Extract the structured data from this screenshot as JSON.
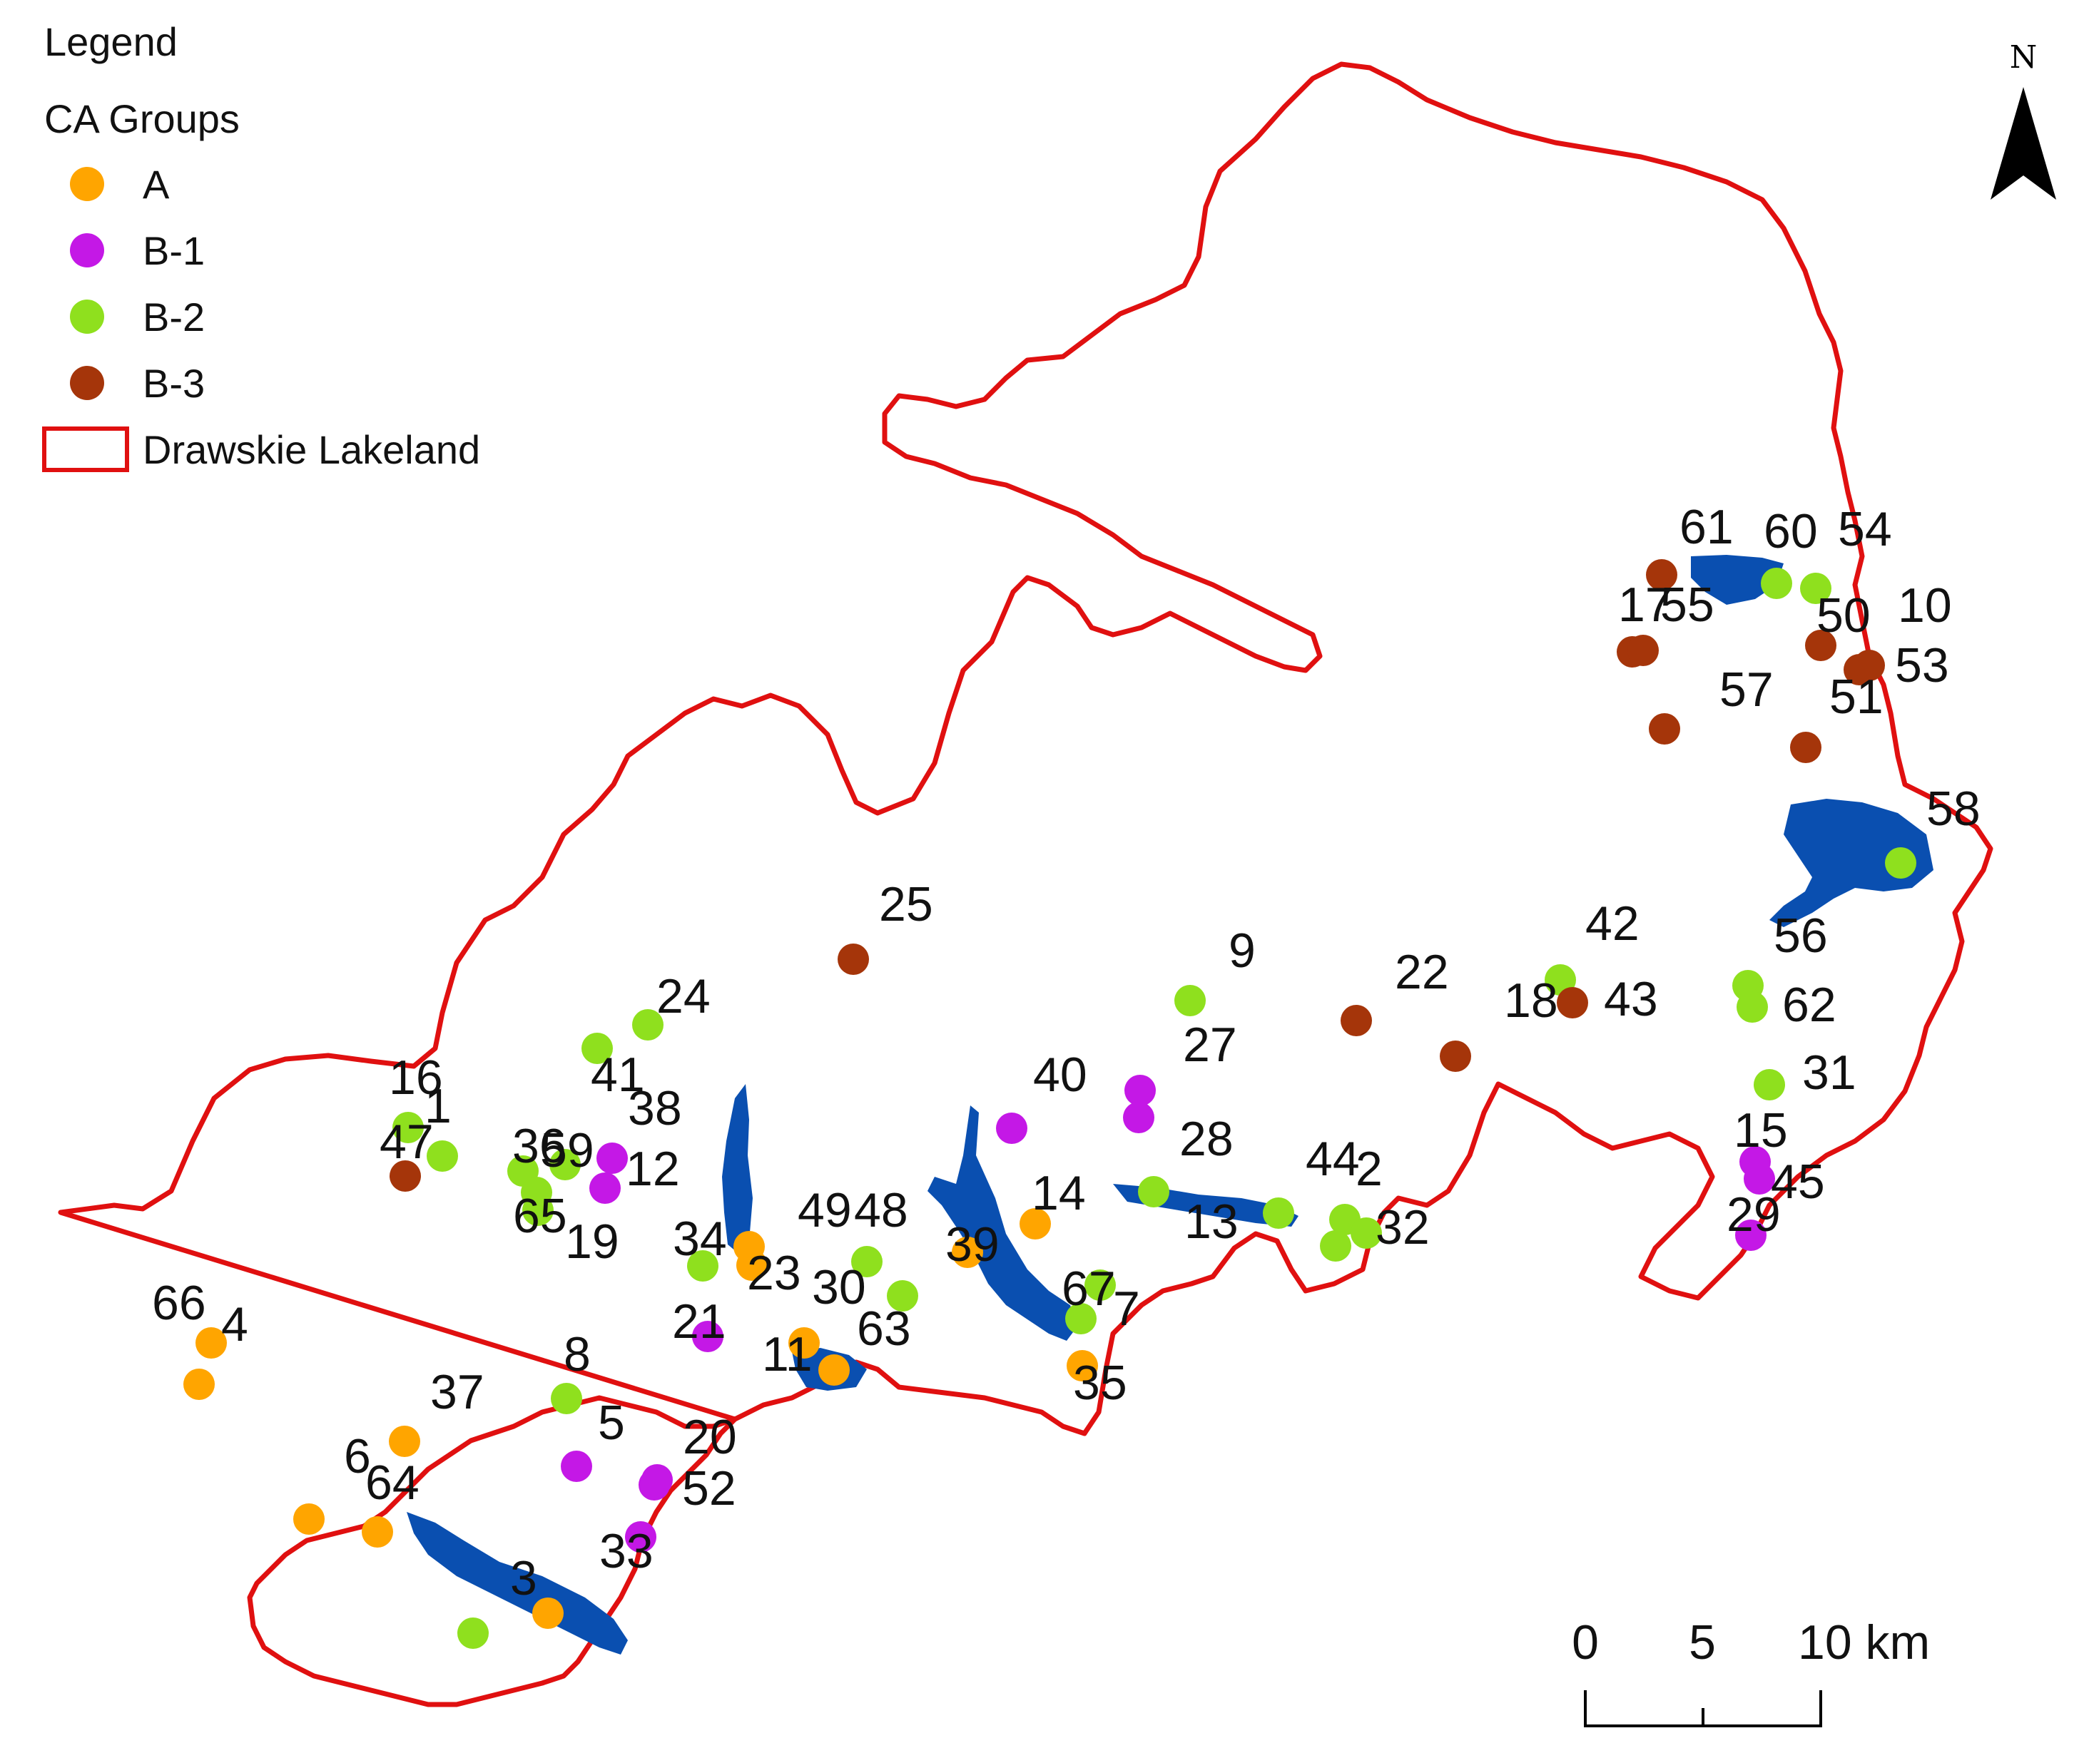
{
  "legend": {
    "title": "Legend",
    "subtitle": "CA Groups",
    "items": [
      {
        "group": "A",
        "label": "A",
        "color": "#FFA500"
      },
      {
        "group": "B-1",
        "label": "B-1",
        "color": "#C418E6"
      },
      {
        "group": "B-2",
        "label": "B-2",
        "color": "#8FE01E"
      },
      {
        "group": "B-3",
        "label": "B-3",
        "color": "#A5350A"
      }
    ],
    "boundary_label": "Drawskie Lakeland",
    "boundary_color": "#E01010"
  },
  "north_arrow": {
    "label": "N",
    "icon": "north-arrow-icon"
  },
  "scale_bar": {
    "ticks": [
      "0",
      "5",
      "10 km"
    ]
  },
  "colors": {
    "lake": "#0A4FB0",
    "boundary": "#E01010"
  },
  "sites": [
    {
      "id": "1",
      "group": "B-2"
    },
    {
      "id": "2",
      "group": "B-2"
    },
    {
      "id": "3",
      "group": "A"
    },
    {
      "id": "4",
      "group": "A"
    },
    {
      "id": "5",
      "group": "B-1"
    },
    {
      "id": "6",
      "group": "A"
    },
    {
      "id": "7",
      "group": "B-2"
    },
    {
      "id": "8",
      "group": "B-2"
    },
    {
      "id": "9",
      "group": "B-2"
    },
    {
      "id": "10",
      "group": "B-3"
    },
    {
      "id": "11",
      "group": "A"
    },
    {
      "id": "12",
      "group": "B-1"
    },
    {
      "id": "13",
      "group": "B-2"
    },
    {
      "id": "14",
      "group": "A"
    },
    {
      "id": "15",
      "group": "B-1"
    },
    {
      "id": "16",
      "group": "B-2"
    },
    {
      "id": "17",
      "group": "B-3"
    },
    {
      "id": "18",
      "group": "B-3"
    },
    {
      "id": "19",
      "group": "B-2"
    },
    {
      "id": "20",
      "group": "B-1"
    },
    {
      "id": "21",
      "group": "B-1"
    },
    {
      "id": "22",
      "group": "B-3"
    },
    {
      "id": "23",
      "group": "A"
    },
    {
      "id": "24",
      "group": "B-2"
    },
    {
      "id": "25",
      "group": "B-3"
    },
    {
      "id": "27",
      "group": "B-1"
    },
    {
      "id": "28",
      "group": "B-1"
    },
    {
      "id": "29",
      "group": "B-1"
    },
    {
      "id": "30",
      "group": "A"
    },
    {
      "id": "31",
      "group": "B-2"
    },
    {
      "id": "32",
      "group": "B-2"
    },
    {
      "id": "33",
      "group": "B-1"
    },
    {
      "id": "34",
      "group": "B-2"
    },
    {
      "id": "35",
      "group": "A"
    },
    {
      "id": "36",
      "group": "B-2"
    },
    {
      "id": "37",
      "group": "A"
    },
    {
      "id": "38",
      "group": "B-1"
    },
    {
      "id": "39",
      "group": "A"
    },
    {
      "id": "40",
      "group": "B-1"
    },
    {
      "id": "41",
      "group": "B-2"
    },
    {
      "id": "42",
      "group": "B-2"
    },
    {
      "id": "43",
      "group": "B-3"
    },
    {
      "id": "44",
      "group": "B-2"
    },
    {
      "id": "45",
      "group": "B-1"
    },
    {
      "id": "47",
      "group": "B-3"
    },
    {
      "id": "48",
      "group": "B-2"
    },
    {
      "id": "49",
      "group": "A"
    },
    {
      "id": "50",
      "group": "B-3"
    },
    {
      "id": "51",
      "group": "B-3"
    },
    {
      "id": "52",
      "group": "B-1"
    },
    {
      "id": "53",
      "group": "B-3"
    },
    {
      "id": "54",
      "group": "B-2"
    },
    {
      "id": "55",
      "group": "B-3"
    },
    {
      "id": "56",
      "group": "B-2"
    },
    {
      "id": "57",
      "group": "B-3"
    },
    {
      "id": "58",
      "group": "B-2"
    },
    {
      "id": "59",
      "group": "B-2"
    },
    {
      "id": "60",
      "group": "B-2"
    },
    {
      "id": "61",
      "group": "B-3"
    },
    {
      "id": "62",
      "group": "B-2"
    },
    {
      "id": "63",
      "group": "B-2"
    },
    {
      "id": "64",
      "group": "A"
    },
    {
      "id": "65",
      "group": "B-2"
    },
    {
      "id": "66",
      "group": "A"
    },
    {
      "id": "",
      "group": "B-2"
    },
    {
      "id": "67",
      "group": "B-2"
    },
    {
      "id": "",
      "group": "B-2"
    }
  ]
}
